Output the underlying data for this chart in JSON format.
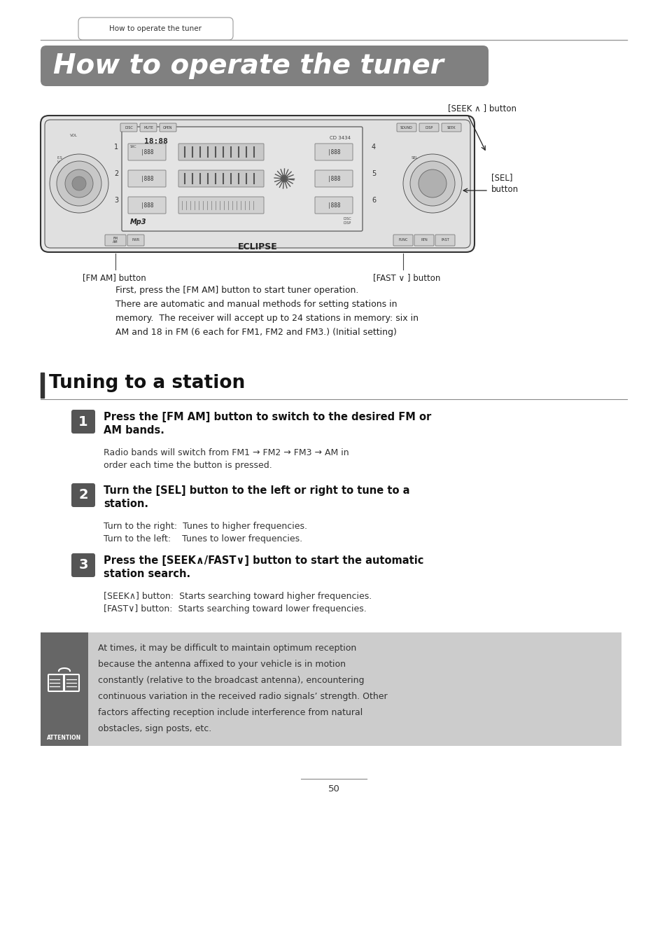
{
  "page_bg": "#ffffff",
  "tab_text": "How to operate the tuner",
  "header_bg": "#808080",
  "header_text": "How to operate the tuner",
  "header_text_color": "#ffffff",
  "seek_label": "[SEEK ∧ ] button",
  "sel_label": "[SEL]\nbutton",
  "fm_am_label": "[FM AM] button",
  "fast_label": "[FAST ∨ ] button",
  "intro_line1": "First, press the [FM AM] button to start tuner operation.",
  "intro_line2": "There are automatic and manual methods for setting stations in",
  "intro_line3": "memory.  The receiver will accept up to 24 stations in memory: six in",
  "intro_line4": "AM and 18 in FM (6 each for FM1, FM2 and FM3.) (Initial setting)",
  "section_title": "Tuning to a station",
  "step1_num": "1",
  "step1_bold": "Press the [FM AM] button to switch to the desired FM or\nAM bands.",
  "step1_detail": "Radio bands will switch from FM1 → FM2 → FM3 → AM in\norder each time the button is pressed.",
  "step2_num": "2",
  "step2_bold": "Turn the [SEL] button to the left or right to tune to a\nstation.",
  "step2_detail": "Turn to the right:  Tunes to higher frequencies.\nTurn to the left:    Tunes to lower frequencies.",
  "step3_num": "3",
  "step3_bold": "Press the [SEEK∧/FAST∨] button to start the automatic\nstation search.",
  "step3_detail": "[SEEK∧] button:  Starts searching toward higher frequencies.\n[FAST∨] button:  Starts searching toward lower frequencies.",
  "attention_bg": "#cccccc",
  "attention_icon_bg": "#666666",
  "attention_text_line1": "At times, it may be difficult to maintain optimum reception",
  "attention_text_line2": "because the antenna affixed to your vehicle is in motion",
  "attention_text_line3": "constantly (relative to the broadcast antenna), encountering",
  "attention_text_line4": "continuous variation in the received radio signals’ strength. Other",
  "attention_text_line5": "factors affecting reception include interference from natural",
  "attention_text_line6": "obstacles, sign posts, etc.",
  "page_num": "50",
  "step_badge_bg": "#555555",
  "step_badge_text_color": "#ffffff",
  "line_color": "#aaaaaa",
  "section_line_color": "#888888",
  "section_bar_color": "#333333"
}
